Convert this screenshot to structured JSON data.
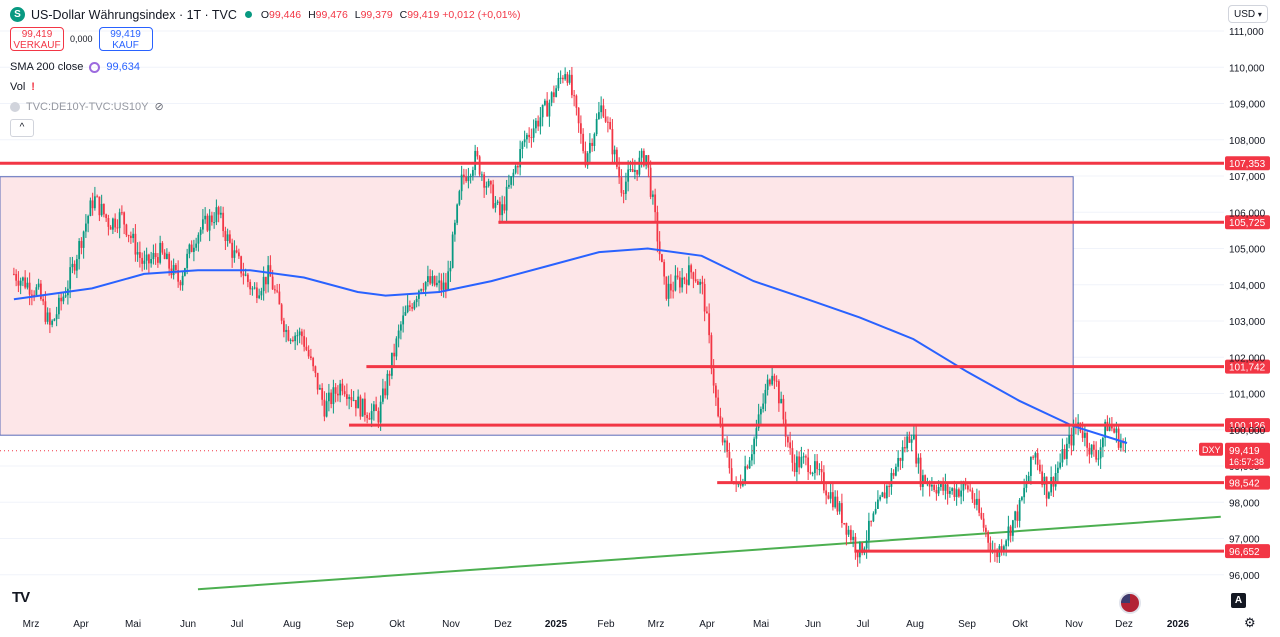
{
  "header": {
    "logo_letter": "S",
    "title": "US-Dollar Währungsindex · 1T · TVC",
    "ohlc": {
      "o_label": "O",
      "o": "99,446",
      "h_label": "H",
      "h": "99,476",
      "l_label": "L",
      "l": "99,379",
      "c_label": "C",
      "c": "99,419",
      "change": "+0,012 (+0,01%)"
    }
  },
  "trade": {
    "sell_price": "99,419",
    "sell_label": "VERKAUF",
    "spread": "0,000",
    "buy_price": "99,419",
    "buy_label": "KAUF"
  },
  "indicators": {
    "sma_label": "SMA 200 close",
    "sma_value": "99,634",
    "vol_label": "Vol",
    "vol_warning": "!",
    "compare_label": "TVC:DE10Y-TVC:US10Y"
  },
  "currency": "USD",
  "collapse": "^",
  "bottom": {
    "tv_logo": "TV",
    "auto_button": "A",
    "gear": "⚙"
  },
  "colors": {
    "up": "#089981",
    "down": "#f23645",
    "sma": "#2962ff",
    "level": "#f23645",
    "trend": "#4caf50",
    "zone_fill": "#fde6e8",
    "zone_border": "#5b6ab8",
    "grid": "#f0f3fa"
  },
  "chart_data": {
    "type": "candlestick",
    "title": "US-Dollar Währungsindex · 1T · TVC",
    "y_axis": {
      "min": 96.0,
      "max": 111.0,
      "ticks": [
        "111,000",
        "110,000",
        "109,000",
        "108,000",
        "107,000",
        "106,000",
        "105,000",
        "104,000",
        "103,000",
        "102,000",
        "101,000",
        "100,000",
        "99,000",
        "98,000",
        "97,000",
        "96,000"
      ]
    },
    "x_axis": {
      "labels": [
        "Mrz",
        "Apr",
        "Mai",
        "Jun",
        "Jul",
        "Aug",
        "Sep",
        "Okt",
        "Nov",
        "Dez",
        "2025",
        "Feb",
        "Mrz",
        "Apr",
        "Mai",
        "Jun",
        "Jul",
        "Aug",
        "Sep",
        "Okt",
        "Nov",
        "Dez",
        "2026"
      ]
    },
    "price_path": [
      [
        "2024-03-01",
        104.3
      ],
      [
        "2024-03-15",
        103.8
      ],
      [
        "2024-03-22",
        102.8
      ],
      [
        "2024-04-01",
        104.0
      ],
      [
        "2024-04-12",
        105.8
      ],
      [
        "2024-04-16",
        106.4
      ],
      [
        "2024-04-25",
        105.7
      ],
      [
        "2024-05-02",
        105.9
      ],
      [
        "2024-05-15",
        104.5
      ],
      [
        "2024-05-24",
        104.9
      ],
      [
        "2024-06-04",
        104.1
      ],
      [
        "2024-06-14",
        105.4
      ],
      [
        "2024-06-26",
        106.0
      ],
      [
        "2024-07-05",
        104.9
      ],
      [
        "2024-07-17",
        103.8
      ],
      [
        "2024-07-26",
        104.3
      ],
      [
        "2024-08-05",
        102.7
      ],
      [
        "2024-08-14",
        102.6
      ],
      [
        "2024-08-27",
        100.6
      ],
      [
        "2024-09-06",
        101.3
      ],
      [
        "2024-09-17",
        100.6
      ],
      [
        "2024-09-27",
        100.4
      ],
      [
        "2024-10-10",
        102.9
      ],
      [
        "2024-10-22",
        104.1
      ],
      [
        "2024-11-05",
        103.9
      ],
      [
        "2024-11-14",
        106.9
      ],
      [
        "2024-11-22",
        107.5
      ],
      [
        "2024-12-06",
        105.9
      ],
      [
        "2024-12-20",
        108.0
      ],
      [
        "2025-01-02",
        108.9
      ],
      [
        "2025-01-13",
        110.0
      ],
      [
        "2025-01-24",
        107.5
      ],
      [
        "2025-02-03",
        109.0
      ],
      [
        "2025-02-14",
        106.7
      ],
      [
        "2025-02-28",
        107.6
      ],
      [
        "2025-03-11",
        103.8
      ],
      [
        "2025-03-27",
        104.4
      ],
      [
        "2025-04-02",
        103.8
      ],
      [
        "2025-04-11",
        100.1
      ],
      [
        "2025-04-21",
        98.3
      ],
      [
        "2025-04-30",
        99.5
      ],
      [
        "2025-05-12",
        101.8
      ],
      [
        "2025-05-23",
        99.1
      ],
      [
        "2025-06-02",
        99.1
      ],
      [
        "2025-06-16",
        98.1
      ],
      [
        "2025-07-01",
        96.6
      ],
      [
        "2025-07-14",
        98.1
      ],
      [
        "2025-07-31",
        100.0
      ],
      [
        "2025-08-05",
        98.7
      ],
      [
        "2025-08-20",
        98.3
      ],
      [
        "2025-09-02",
        98.4
      ],
      [
        "2025-09-17",
        96.5
      ],
      [
        "2025-10-01",
        97.8
      ],
      [
        "2025-10-10",
        99.4
      ],
      [
        "2025-10-17",
        98.3
      ],
      [
        "2025-11-04",
        100.2
      ],
      [
        "2025-11-14",
        99.2
      ],
      [
        "2025-11-21",
        100.2
      ],
      [
        "2025-12-02",
        99.419
      ]
    ],
    "sma200_path": [
      [
        "2024-03-01",
        103.6
      ],
      [
        "2024-04-15",
        103.9
      ],
      [
        "2024-05-15",
        104.3
      ],
      [
        "2024-06-15",
        104.4
      ],
      [
        "2024-07-15",
        104.4
      ],
      [
        "2024-08-15",
        104.2
      ],
      [
        "2024-09-15",
        103.8
      ],
      [
        "2024-10-01",
        103.7
      ],
      [
        "2024-11-01",
        103.8
      ],
      [
        "2024-12-01",
        104.1
      ],
      [
        "2025-01-01",
        104.5
      ],
      [
        "2025-02-01",
        104.9
      ],
      [
        "2025-03-01",
        105.0
      ],
      [
        "2025-04-01",
        104.8
      ],
      [
        "2025-05-01",
        104.1
      ],
      [
        "2025-06-01",
        103.6
      ],
      [
        "2025-07-01",
        103.1
      ],
      [
        "2025-08-01",
        102.5
      ],
      [
        "2025-09-01",
        101.6
      ],
      [
        "2025-10-01",
        100.8
      ],
      [
        "2025-11-01",
        100.1
      ],
      [
        "2025-12-02",
        99.634
      ]
    ],
    "horizontal_levels": [
      {
        "label": "107,353",
        "price": 107.353,
        "from": "2024-02-22"
      },
      {
        "label": "105,725",
        "price": 105.725,
        "from": "2024-12-05"
      },
      {
        "label": "101,742",
        "price": 101.742,
        "from": "2024-09-20"
      },
      {
        "label": "100,126",
        "price": 100.126,
        "from": "2024-09-10"
      },
      {
        "label": "98,542",
        "price": 98.542,
        "from": "2025-04-10"
      },
      {
        "label": "96,652",
        "price": 96.652,
        "from": "2025-06-28"
      }
    ],
    "zone": {
      "from": "2024-02-22",
      "to": "2025-11-01",
      "top": 106.98,
      "bottom": 99.85
    },
    "trendline": {
      "from": [
        "2024-06-15",
        95.6
      ],
      "to": [
        "2026-01-25",
        97.6
      ]
    },
    "current": {
      "symbol": "DXY",
      "price": "99,419",
      "countdown": "16:57:38"
    }
  }
}
